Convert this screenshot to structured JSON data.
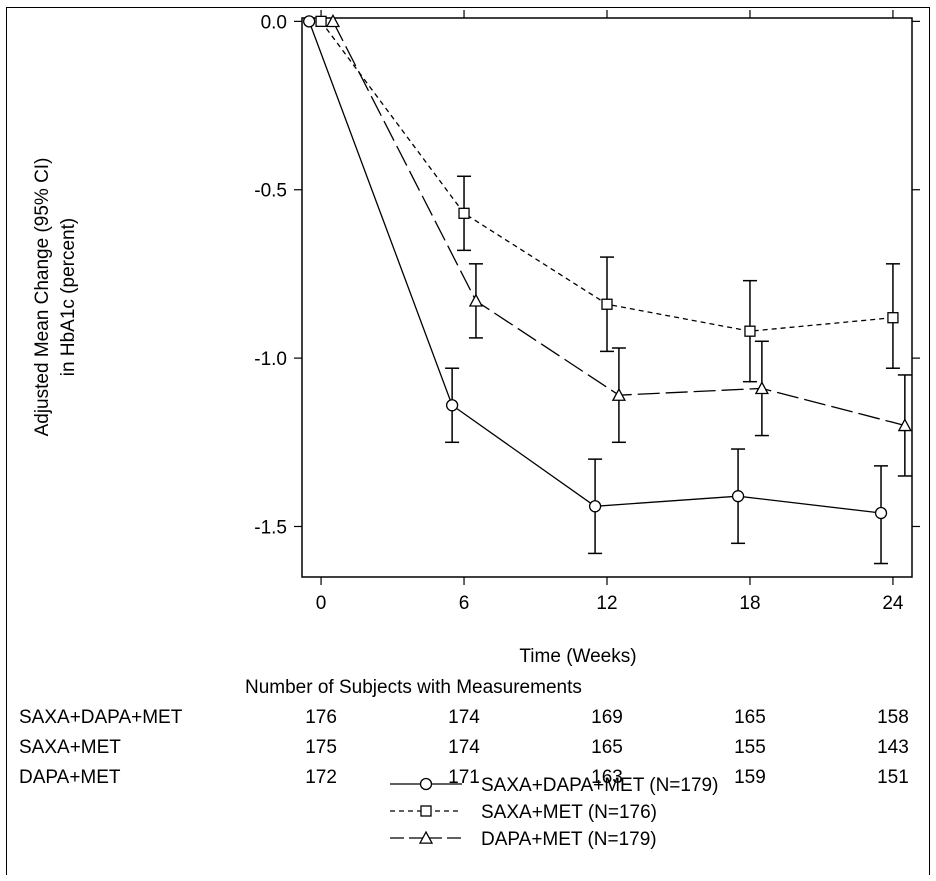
{
  "chart_data": {
    "type": "line",
    "title": "",
    "xlabel": "Time (Weeks)",
    "ylabel": "Adjusted Mean Change (95% CI)",
    "ylabel_line2": "in HbA1c (percent)",
    "x_ticks": [
      0,
      6,
      12,
      18,
      24
    ],
    "y_ticks": [
      0.0,
      -0.5,
      -1.0,
      -1.5
    ],
    "y_tick_labels": [
      "0.0",
      "-0.5",
      "-1.0",
      "-1.5"
    ],
    "xlim": [
      -0.8,
      24.8
    ],
    "ylim": [
      -1.65,
      0.01
    ],
    "grid": false,
    "series": [
      {
        "name": "SAXA+DAPA+MET (N=179)",
        "marker": "circle",
        "line_style": "solid",
        "x": [
          -0.5,
          5.5,
          11.5,
          17.5,
          23.5
        ],
        "y": [
          0.0,
          -1.14,
          -1.44,
          -1.41,
          -1.46
        ],
        "ci_low": [
          null,
          -1.25,
          -1.58,
          -1.55,
          -1.61
        ],
        "ci_high": [
          null,
          -1.03,
          -1.3,
          -1.27,
          -1.32
        ]
      },
      {
        "name": "SAXA+MET (N=176)",
        "marker": "square",
        "line_style": "dotted",
        "x": [
          0.0,
          6.0,
          12.0,
          18.0,
          24.0
        ],
        "y": [
          0.0,
          -0.57,
          -0.84,
          -0.92,
          -0.88
        ],
        "ci_low": [
          null,
          -0.68,
          -0.98,
          -1.07,
          -1.03
        ],
        "ci_high": [
          null,
          -0.46,
          -0.7,
          -0.77,
          -0.72
        ]
      },
      {
        "name": "DAPA+MET (N=179)",
        "marker": "triangle",
        "line_style": "dashed",
        "x": [
          0.5,
          6.5,
          12.5,
          18.5,
          24.5
        ],
        "y": [
          0.0,
          -0.83,
          -1.11,
          -1.09,
          -1.2
        ],
        "ci_low": [
          null,
          -0.94,
          -1.25,
          -1.23,
          -1.35
        ],
        "ci_high": [
          null,
          -0.72,
          -0.97,
          -0.95,
          -1.05
        ]
      }
    ],
    "subjects_table": {
      "title": "Number of Subjects with Measurements",
      "rows": [
        {
          "label": "SAXA+DAPA+MET",
          "values": [
            "176",
            "174",
            "169",
            "165",
            "158"
          ]
        },
        {
          "label": "SAXA+MET",
          "values": [
            "175",
            "174",
            "165",
            "155",
            "143"
          ]
        },
        {
          "label": "DAPA+MET",
          "values": [
            "172",
            "171",
            "163",
            "159",
            "151"
          ]
        }
      ]
    },
    "legend_placement": "bottom-center"
  }
}
